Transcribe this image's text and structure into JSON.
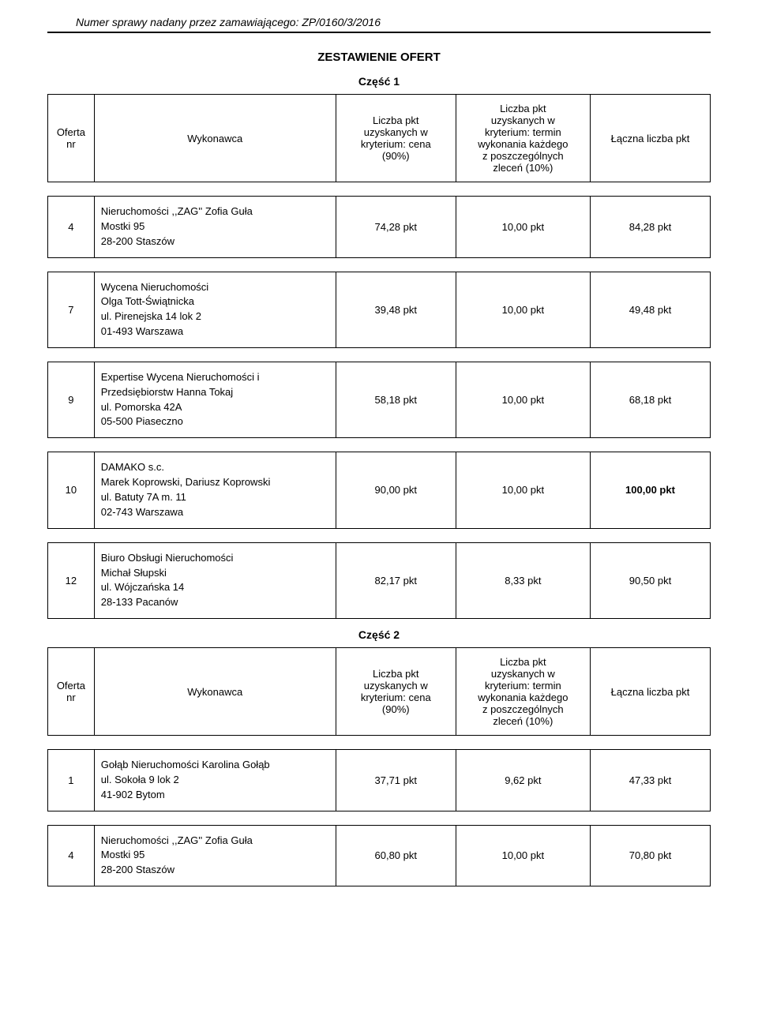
{
  "header": {
    "case_number": "Numer sprawy nadany przez zamawiającego: ZP/0160/3/2016"
  },
  "doc_title": "ZESTAWIENIE OFERT",
  "columns": {
    "nr": "Oferta\nnr",
    "wykonawca": "Wykonawca",
    "crit1": "Liczba pkt\nuzyskanych w\nkryterium: cena\n(90%)",
    "crit2": "Liczba pkt\nuzyskanych w\nkryterium: termin\nwykonania każdego\nz poszczególnych\nzleceń (10%)",
    "total": "Łączna liczba pkt"
  },
  "part1": {
    "title": "Część 1",
    "rows": [
      {
        "nr": "4",
        "wyk": "Nieruchomości ,,ZAG'' Zofia Guła\nMostki 95\n28-200 Staszów",
        "c1": "74,28 pkt",
        "c2": "10,00 pkt",
        "tot": "84,28 pkt",
        "tot_bold": false
      },
      {
        "nr": "7",
        "wyk": "Wycena Nieruchomości\nOlga Tott-Świątnicka\nul. Pirenejska 14 lok 2\n01-493 Warszawa",
        "c1": "39,48 pkt",
        "c2": "10,00 pkt",
        "tot": "49,48 pkt",
        "tot_bold": false
      },
      {
        "nr": "9",
        "wyk": "Expertise Wycena Nieruchomości i\nPrzedsiębiorstw Hanna Tokaj\nul. Pomorska 42A\n05-500 Piaseczno",
        "c1": "58,18 pkt",
        "c2": "10,00 pkt",
        "tot": "68,18 pkt",
        "tot_bold": false
      },
      {
        "nr": "10",
        "wyk": "DAMAKO s.c.\nMarek Koprowski, Dariusz Koprowski\nul. Batuty 7A m. 11\n02-743 Warszawa",
        "c1": "90,00 pkt",
        "c2": "10,00 pkt",
        "tot": "100,00 pkt",
        "tot_bold": true
      },
      {
        "nr": "12",
        "wyk": "Biuro Obsługi Nieruchomości\nMichał Słupski\nul. Wójczańska 14\n28-133 Pacanów",
        "c1": "82,17 pkt",
        "c2": "8,33 pkt",
        "tot": "90,50 pkt",
        "tot_bold": false
      }
    ]
  },
  "part2": {
    "title": "Część 2",
    "rows": [
      {
        "nr": "1",
        "wyk": "Gołąb Nieruchomości Karolina Gołąb\nul. Sokoła 9 lok 2\n41-902 Bytom",
        "c1": "37,71 pkt",
        "c2": "9,62 pkt",
        "tot": "47,33 pkt",
        "tot_bold": false
      },
      {
        "nr": "4",
        "wyk": "Nieruchomości ,,ZAG'' Zofia Guła\nMostki 95\n28-200 Staszów",
        "c1": "60,80 pkt",
        "c2": "10,00 pkt",
        "tot": "70,80 pkt",
        "tot_bold": false
      }
    ]
  }
}
